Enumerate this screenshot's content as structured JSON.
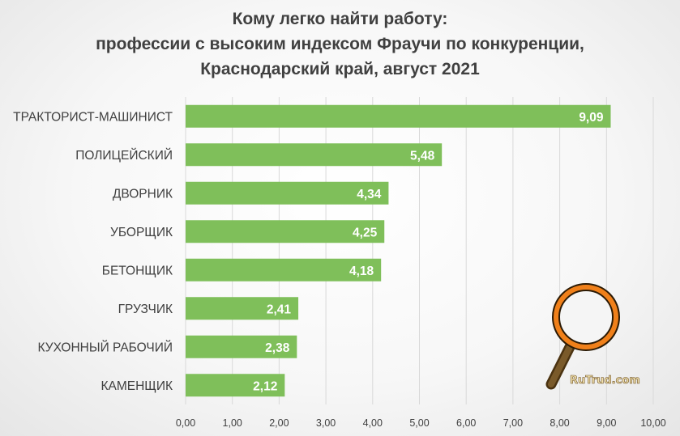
{
  "chart_data": {
    "type": "bar",
    "orientation": "horizontal",
    "title_lines": [
      "Кому легко найти работу:",
      "профессии с высоким индексом Фраучи по конкуренции,",
      "Краснодарский край, август 2021"
    ],
    "categories": [
      "ТРАКТОРИСТ-МАШИНИСТ",
      "ПОЛИЦЕЙСКИЙ",
      "ДВОРНИК",
      "УБОРЩИК",
      "БЕТОНЩИК",
      "ГРУЗЧИК",
      "КУХОННЫЙ РАБОЧИЙ",
      "КАМЕНЩИК"
    ],
    "values": [
      9.09,
      5.48,
      4.34,
      4.25,
      4.18,
      2.41,
      2.38,
      2.12
    ],
    "value_labels": [
      "9,09",
      "5,48",
      "4,34",
      "4,25",
      "4,18",
      "2,41",
      "2,38",
      "2,12"
    ],
    "xlim": [
      0,
      10
    ],
    "x_ticks": [
      "0,00",
      "1,00",
      "2,00",
      "3,00",
      "4,00",
      "5,00",
      "6,00",
      "7,00",
      "8,00",
      "9,00",
      "10,00"
    ],
    "grid": "vertical",
    "bar_color": "#7fbf5a"
  },
  "watermark": {
    "text": "RuTrud.com",
    "icon": "magnifier-icon"
  }
}
